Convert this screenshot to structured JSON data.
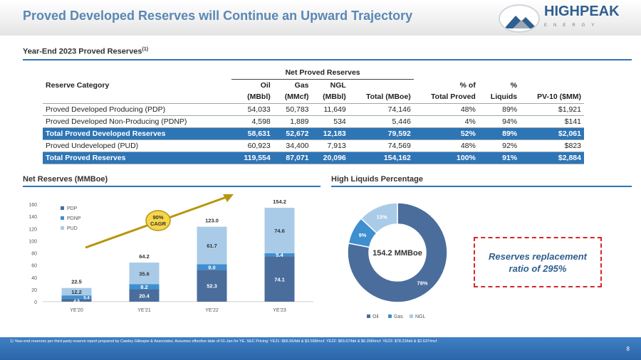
{
  "header": {
    "title": "Proved Developed Reserves will Continue an Upward Trajectory",
    "logo_text": "HIGHPEAK",
    "logo_sub": "ENERGY"
  },
  "reserves_section": {
    "title": "Year-End 2023 Proved Reserves",
    "footnote_ref": "(1)"
  },
  "table": {
    "group_header": "Net Proved Reserves",
    "columns": [
      [
        "Reserve Category",
        ""
      ],
      [
        "Oil",
        "(MBbl)"
      ],
      [
        "Gas",
        "(MMcf)"
      ],
      [
        "NGL",
        "(MBbl)"
      ],
      [
        "",
        "Total (MBoe)"
      ],
      [
        "% of",
        "Total Proved"
      ],
      [
        "%",
        "Liquids"
      ],
      [
        "",
        "PV-10 ($MM)"
      ]
    ],
    "rows": [
      {
        "cells": [
          "Proved Developed Producing (PDP)",
          "54,033",
          "50,783",
          "11,649",
          "74,146",
          "48%",
          "89%",
          "$1,921"
        ],
        "highlight": false
      },
      {
        "cells": [
          "Proved Developed Non-Producing (PDNP)",
          "4,598",
          "1,889",
          "534",
          "5,446",
          "4%",
          "94%",
          "$141"
        ],
        "highlight": false
      },
      {
        "cells": [
          "Total Proved Developed Reserves",
          "58,631",
          "52,672",
          "12,183",
          "79,592",
          "52%",
          "89%",
          "$2,061"
        ],
        "highlight": true
      },
      {
        "cells": [
          "Proved Undeveloped (PUD)",
          "60,923",
          "34,400",
          "7,913",
          "74,569",
          "48%",
          "92%",
          "$823"
        ],
        "highlight": false
      },
      {
        "cells": [
          "Total Proved Reserves",
          "119,554",
          "87,071",
          "20,096",
          "154,162",
          "100%",
          "91%",
          "$2,884"
        ],
        "highlight": true
      }
    ]
  },
  "net_section": {
    "title": "Net Reserves (MMBoe)"
  },
  "liquids_section": {
    "title": "High Liquids Percentage"
  },
  "chart_data": [
    {
      "type": "bar",
      "stacked": true,
      "categories": [
        "YE'20",
        "YE'21",
        "YE'22",
        "YE'23"
      ],
      "series": [
        {
          "name": "PDP",
          "values": [
            4.9,
            20.4,
            52.3,
            74.1
          ],
          "color": "#4a6d9c"
        },
        {
          "name": "PDNP",
          "values": [
            5.4,
            8.2,
            9.0,
            5.4
          ],
          "color": "#3e8fd0"
        },
        {
          "name": "PUD",
          "values": [
            12.2,
            35.6,
            61.7,
            74.6
          ],
          "color": "#a9cbe8"
        }
      ],
      "totals": [
        22.5,
        64.2,
        123.0,
        154.2
      ],
      "ylim": [
        0,
        160
      ],
      "yticks": [
        0,
        20,
        40,
        60,
        80,
        100,
        120,
        140,
        160
      ],
      "legend": "top-left",
      "annotation": "90% CAGR",
      "annotation_lines": [
        "90%",
        "CAGR"
      ]
    },
    {
      "type": "pie",
      "donut": true,
      "center_label": "154.2 MMBoe",
      "slices": [
        {
          "name": "Oil",
          "value": 78,
          "label": "78%",
          "color": "#4a6d9c"
        },
        {
          "name": "Gas",
          "value": 9,
          "label": "9%",
          "color": "#3e8fd0"
        },
        {
          "name": "NGL",
          "value": 13,
          "label": "13%",
          "color": "#a9cbe8"
        }
      ],
      "legend": "bottom"
    }
  ],
  "callout": {
    "line1": "Reserves replacement",
    "line2": "ratio of 295%"
  },
  "footer": {
    "footnote": "1)     Year-end reserves per third-party reserve report prepared by Cawley Gillespie & Associates. Assumes effective date of 01-Jan for YE.  SEC Pricing: YE21: $66.56/bbl & $3.598/mcf.  YE22: $93.67/bbl & $6.358/mcf. YE23: $78.22/bbl & $2.637/mcf",
    "page": "8"
  }
}
